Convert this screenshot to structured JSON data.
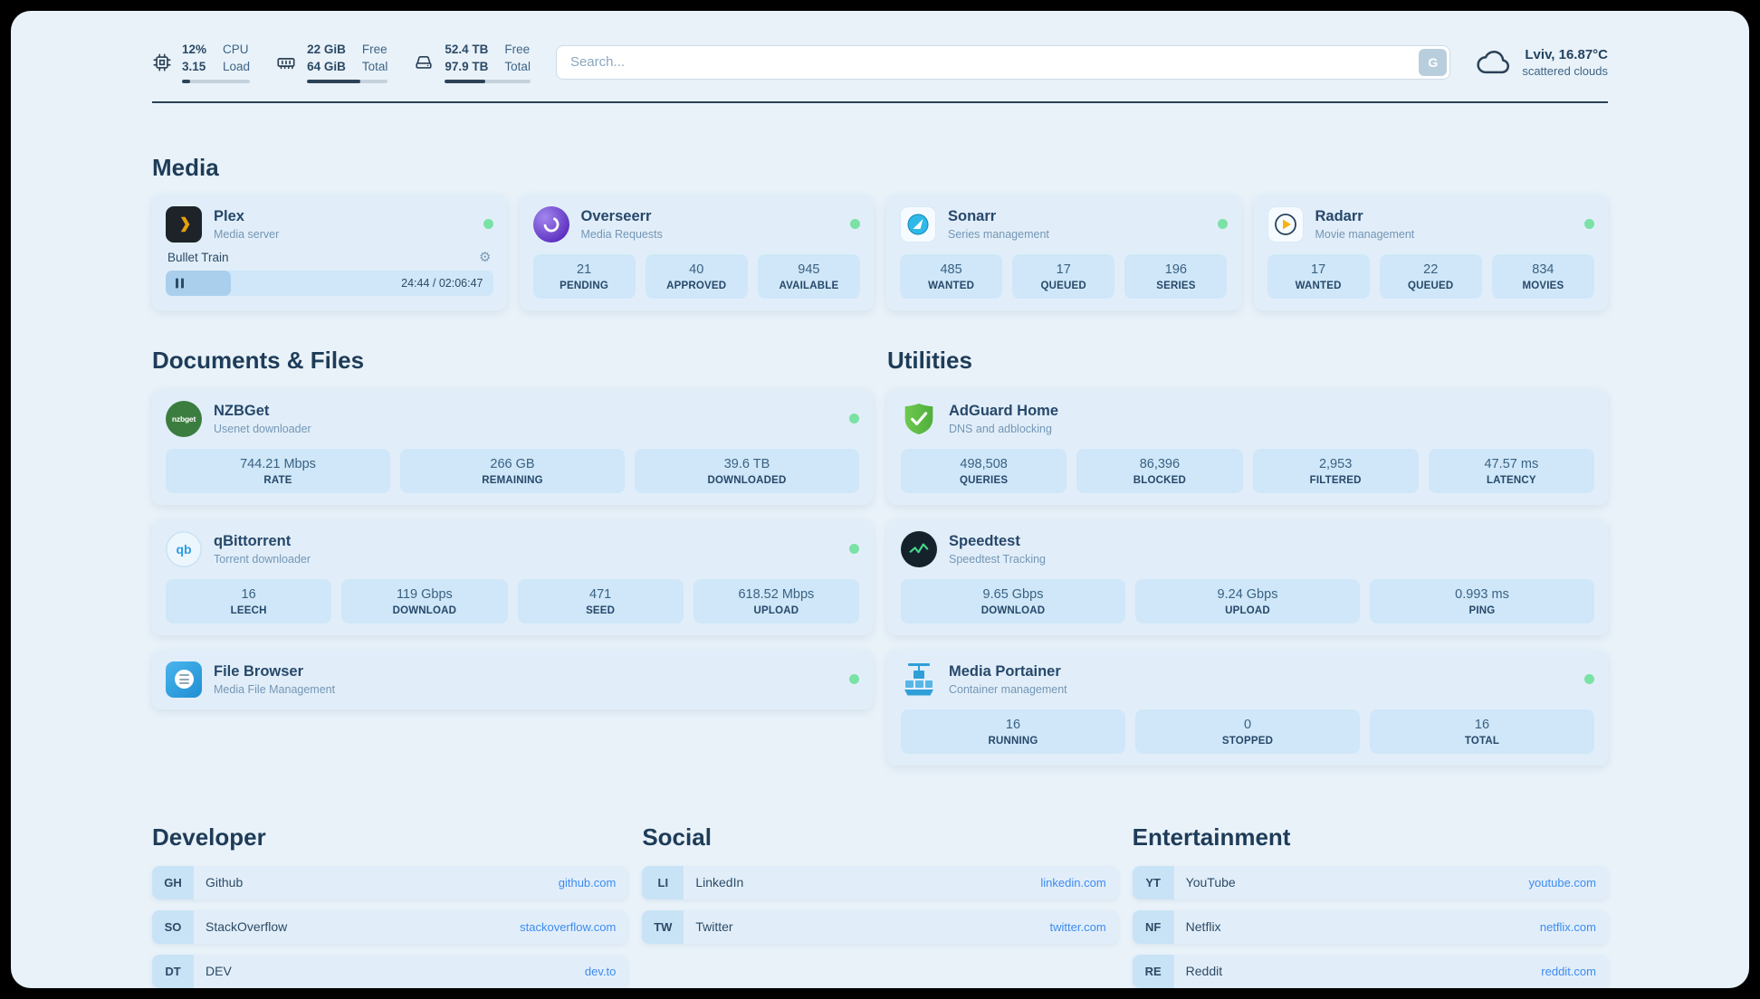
{
  "topbar": {
    "cpu": {
      "usage": "12%",
      "usage_label": "CPU",
      "load": "3.15",
      "load_label": "Load",
      "percent": 12
    },
    "memory": {
      "free": "22 GiB",
      "free_label": "Free",
      "total": "64 GiB",
      "total_label": "Total",
      "percent": 66
    },
    "disk": {
      "free": "52.4 TB",
      "free_label": "Free",
      "total": "97.9 TB",
      "total_label": "Total",
      "percent": 47
    },
    "search": {
      "placeholder": "Search...",
      "provider": "G"
    },
    "weather": {
      "location": "Lviv, 16.87°C",
      "condition": "scattered clouds"
    }
  },
  "sections": {
    "media": "Media",
    "documents": "Documents & Files",
    "utilities": "Utilities",
    "developer": "Developer",
    "social": "Social",
    "entertainment": "Entertainment"
  },
  "services": {
    "plex": {
      "name": "Plex",
      "desc": "Media server",
      "now_playing": {
        "title": "Bullet Train",
        "time": "24:44 / 02:06:47",
        "percent": 20
      }
    },
    "overseerr": {
      "name": "Overseerr",
      "desc": "Media Requests",
      "stats": [
        {
          "value": "21",
          "label": "PENDING"
        },
        {
          "value": "40",
          "label": "APPROVED"
        },
        {
          "value": "945",
          "label": "AVAILABLE"
        }
      ]
    },
    "sonarr": {
      "name": "Sonarr",
      "desc": "Series management",
      "stats": [
        {
          "value": "485",
          "label": "WANTED"
        },
        {
          "value": "17",
          "label": "QUEUED"
        },
        {
          "value": "196",
          "label": "SERIES"
        }
      ]
    },
    "radarr": {
      "name": "Radarr",
      "desc": "Movie management",
      "stats": [
        {
          "value": "17",
          "label": "WANTED"
        },
        {
          "value": "22",
          "label": "QUEUED"
        },
        {
          "value": "834",
          "label": "MOVIES"
        }
      ]
    },
    "nzbget": {
      "name": "NZBGet",
      "desc": "Usenet downloader",
      "stats": [
        {
          "value": "744.21 Mbps",
          "label": "RATE"
        },
        {
          "value": "266 GB",
          "label": "REMAINING"
        },
        {
          "value": "39.6 TB",
          "label": "DOWNLOADED"
        }
      ]
    },
    "qbittorrent": {
      "name": "qBittorrent",
      "desc": "Torrent downloader",
      "stats": [
        {
          "value": "16",
          "label": "LEECH"
        },
        {
          "value": "119 Gbps",
          "label": "DOWNLOAD"
        },
        {
          "value": "471",
          "label": "SEED"
        },
        {
          "value": "618.52 Mbps",
          "label": "UPLOAD"
        }
      ]
    },
    "filebrowser": {
      "name": "File Browser",
      "desc": "Media File Management"
    },
    "adguard": {
      "name": "AdGuard Home",
      "desc": "DNS and adblocking",
      "stats": [
        {
          "value": "498,508",
          "label": "QUERIES"
        },
        {
          "value": "86,396",
          "label": "BLOCKED"
        },
        {
          "value": "2,953",
          "label": "FILTERED"
        },
        {
          "value": "47.57 ms",
          "label": "LATENCY"
        }
      ]
    },
    "speedtest": {
      "name": "Speedtest",
      "desc": "Speedtest Tracking",
      "stats": [
        {
          "value": "9.65 Gbps",
          "label": "DOWNLOAD"
        },
        {
          "value": "9.24 Gbps",
          "label": "UPLOAD"
        },
        {
          "value": "0.993 ms",
          "label": "PING"
        }
      ]
    },
    "portainer": {
      "name": "Media Portainer",
      "desc": "Container management",
      "stats": [
        {
          "value": "16",
          "label": "RUNNING"
        },
        {
          "value": "0",
          "label": "STOPPED"
        },
        {
          "value": "16",
          "label": "TOTAL"
        }
      ]
    }
  },
  "bookmarks": {
    "developer": [
      {
        "abbr": "GH",
        "name": "Github",
        "url": "github.com"
      },
      {
        "abbr": "SO",
        "name": "StackOverflow",
        "url": "stackoverflow.com"
      },
      {
        "abbr": "DT",
        "name": "DEV",
        "url": "dev.to"
      }
    ],
    "social": [
      {
        "abbr": "LI",
        "name": "LinkedIn",
        "url": "linkedin.com"
      },
      {
        "abbr": "TW",
        "name": "Twitter",
        "url": "twitter.com"
      }
    ],
    "entertainment": [
      {
        "abbr": "YT",
        "name": "YouTube",
        "url": "youtube.com"
      },
      {
        "abbr": "NF",
        "name": "Netflix",
        "url": "netflix.com"
      },
      {
        "abbr": "RE",
        "name": "Reddit",
        "url": "reddit.com"
      }
    ]
  },
  "icons": {
    "nzbget_logo": "nzbget",
    "qbittorrent_logo": "qb"
  },
  "colors": {
    "background": "#e9f2f9",
    "card": "#e1eef9",
    "stat_box": "#cfe7f8",
    "text_primary": "#27486a",
    "text_secondary": "#7496b5",
    "link": "#3e8bf0",
    "status_online": "#79e2a4",
    "divider": "#2b4157"
  }
}
